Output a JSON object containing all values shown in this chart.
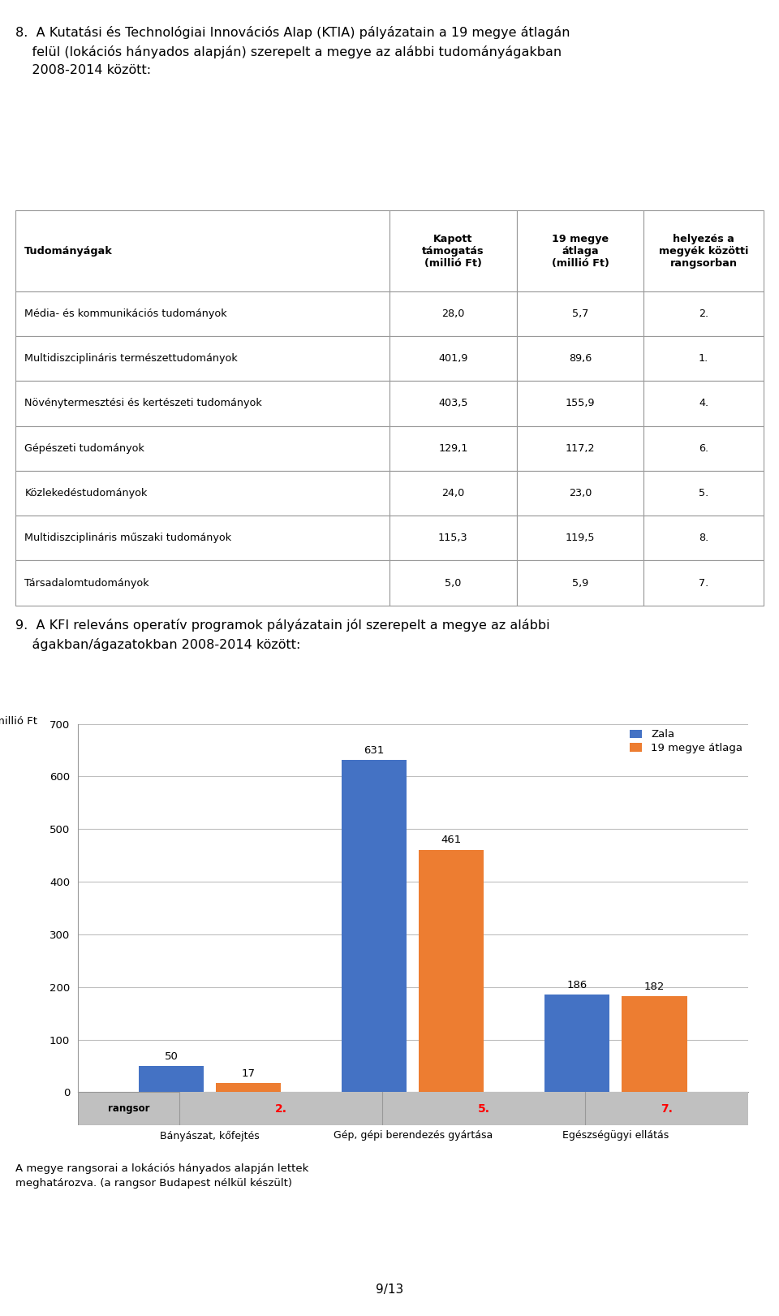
{
  "page_number": "9/13",
  "section8_title": "8.  A Kutatási és Technológiai Innovációs Alap (KTIA) pályázatain a 19 megye átlagán\n    felül (lokációs hányados alapján) szerepelt a megye az alábbi tudományágakban\n    2008-2014 között:",
  "table_header": [
    "Tudományágak",
    "Kapott\ntámogatás\n(millió Ft)",
    "19 megye\nátlaga\n(millió Ft)",
    "helyezés a\nmegyék közötti\nrangsorban"
  ],
  "table_rows": [
    [
      "Média- és kommunikációs tudományok",
      "28,0",
      "5,7",
      "2."
    ],
    [
      "Multidiszciplináris természettudományok",
      "401,9",
      "89,6",
      "1."
    ],
    [
      "Növénytermesztési és kertészeti tudományok",
      "403,5",
      "155,9",
      "4."
    ],
    [
      "Gépészeti tudományok",
      "129,1",
      "117,2",
      "6."
    ],
    [
      "Közlekedéstudományok",
      "24,0",
      "23,0",
      "5."
    ],
    [
      "Multidiszciplináris műszaki tudományok",
      "115,3",
      "119,5",
      "8."
    ],
    [
      "Társadalomtudományok",
      "5,0",
      "5,9",
      "7."
    ]
  ],
  "section9_title": "9.  A KFI releváns operatív programok pályázatain jól szerepelt a megye az alábbi\n    ágakban/ágazatokban 2008-2014 között:",
  "chart_categories": [
    "Bányászat, kőfejtés",
    "Gép, gépi berendezés gyártása",
    "Egészségügyi ellátás"
  ],
  "chart_ranks": [
    "2.",
    "5.",
    "7."
  ],
  "chart_zala": [
    50,
    631,
    186
  ],
  "chart_avg": [
    17,
    461,
    182
  ],
  "chart_ylim": [
    0,
    700
  ],
  "chart_yticks": [
    0,
    100,
    200,
    300,
    400,
    500,
    600,
    700
  ],
  "chart_ylabel": "millió Ft",
  "legend_zala": "Zala",
  "legend_avg": "19 megye átlaga",
  "color_zala": "#4472C4",
  "color_avg": "#ED7D31",
  "color_rank_bg": "#C0C0C0",
  "color_rank_text": "#FF0000",
  "color_rank_label": "#000000",
  "color_grid": "#BFBFBF",
  "footnote": "A megye rangsorai a lokációs hányados alapján lettek\nmeghatározva. (a rangsor Budapest nélkül készült)",
  "background_color": "#FFFFFF"
}
